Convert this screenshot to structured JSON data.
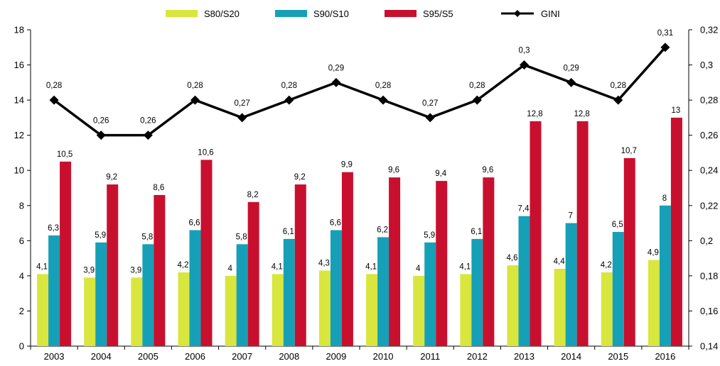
{
  "chart_data": {
    "type": "bar",
    "categories": [
      "2003",
      "2004",
      "2005",
      "2006",
      "2007",
      "2008",
      "2009",
      "2010",
      "2011",
      "2012",
      "2013",
      "2014",
      "2015",
      "2016"
    ],
    "series": [
      {
        "name": "S80/S20",
        "color": "#d9e63d",
        "axis": "left",
        "type": "bar",
        "values": [
          4.1,
          3.9,
          3.9,
          4.2,
          4,
          4.1,
          4.3,
          4.1,
          4,
          4.1,
          4.6,
          4.4,
          4.2,
          4.9
        ],
        "labels": [
          "4,1",
          "3,9",
          "3,9",
          "4,2",
          "4",
          "4,1",
          "4,3",
          "4,1",
          "4",
          "4,1",
          "4,6",
          "4,4",
          "4,2",
          "4,9"
        ]
      },
      {
        "name": "S90/S10",
        "color": "#16a0b8",
        "axis": "left",
        "type": "bar",
        "values": [
          6.3,
          5.9,
          5.8,
          6.6,
          5.8,
          6.1,
          6.6,
          6.2,
          5.9,
          6.1,
          7.4,
          7,
          6.5,
          8
        ],
        "labels": [
          "6,3",
          "5,9",
          "5,8",
          "6,6",
          "5,8",
          "6,1",
          "6,6",
          "6,2",
          "5,9",
          "6,1",
          "7,4",
          "7",
          "6,5",
          "8"
        ]
      },
      {
        "name": "S95/S5",
        "color": "#c8102e",
        "axis": "left",
        "type": "bar",
        "values": [
          10.5,
          9.2,
          8.6,
          10.6,
          8.2,
          9.2,
          9.9,
          9.6,
          9.4,
          9.6,
          12.8,
          12.8,
          10.7,
          13
        ],
        "labels": [
          "10,5",
          "9,2",
          "8,6",
          "10,6",
          "8,2",
          "9,2",
          "9,9",
          "9,6",
          "9,4",
          "9,6",
          "12,8",
          "12,8",
          "10,7",
          "13"
        ]
      },
      {
        "name": "GINI",
        "color": "#000000",
        "axis": "right",
        "type": "line",
        "values": [
          0.28,
          0.26,
          0.26,
          0.28,
          0.27,
          0.28,
          0.29,
          0.28,
          0.27,
          0.28,
          0.3,
          0.29,
          0.28,
          0.31
        ],
        "labels": [
          "0,28",
          "0,26",
          "0,26",
          "0,28",
          "0,27",
          "0,28",
          "0,29",
          "0,28",
          "0,27",
          "0,28",
          "0,3",
          "0,29",
          "0,28",
          "0,31"
        ]
      }
    ],
    "y_left": {
      "min": 0,
      "max": 18,
      "step": 2,
      "ticks": [
        "0",
        "2",
        "4",
        "6",
        "8",
        "10",
        "12",
        "14",
        "16",
        "18"
      ]
    },
    "y_right": {
      "min": 0.14,
      "max": 0.32,
      "step": 0.02,
      "ticks": [
        "0,14",
        "0,16",
        "0,18",
        "0,2",
        "0,22",
        "0,24",
        "0,26",
        "0,28",
        "0,3",
        "0,32"
      ]
    },
    "legend_position": "top",
    "grid": false
  }
}
